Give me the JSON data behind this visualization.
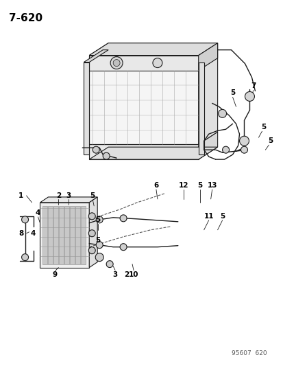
{
  "title": "7-620",
  "watermark": "95607  620",
  "background_color": "#ffffff",
  "line_color": "#1a1a1a",
  "text_color": "#000000",
  "figsize": [
    4.14,
    5.33
  ],
  "dpi": 100
}
